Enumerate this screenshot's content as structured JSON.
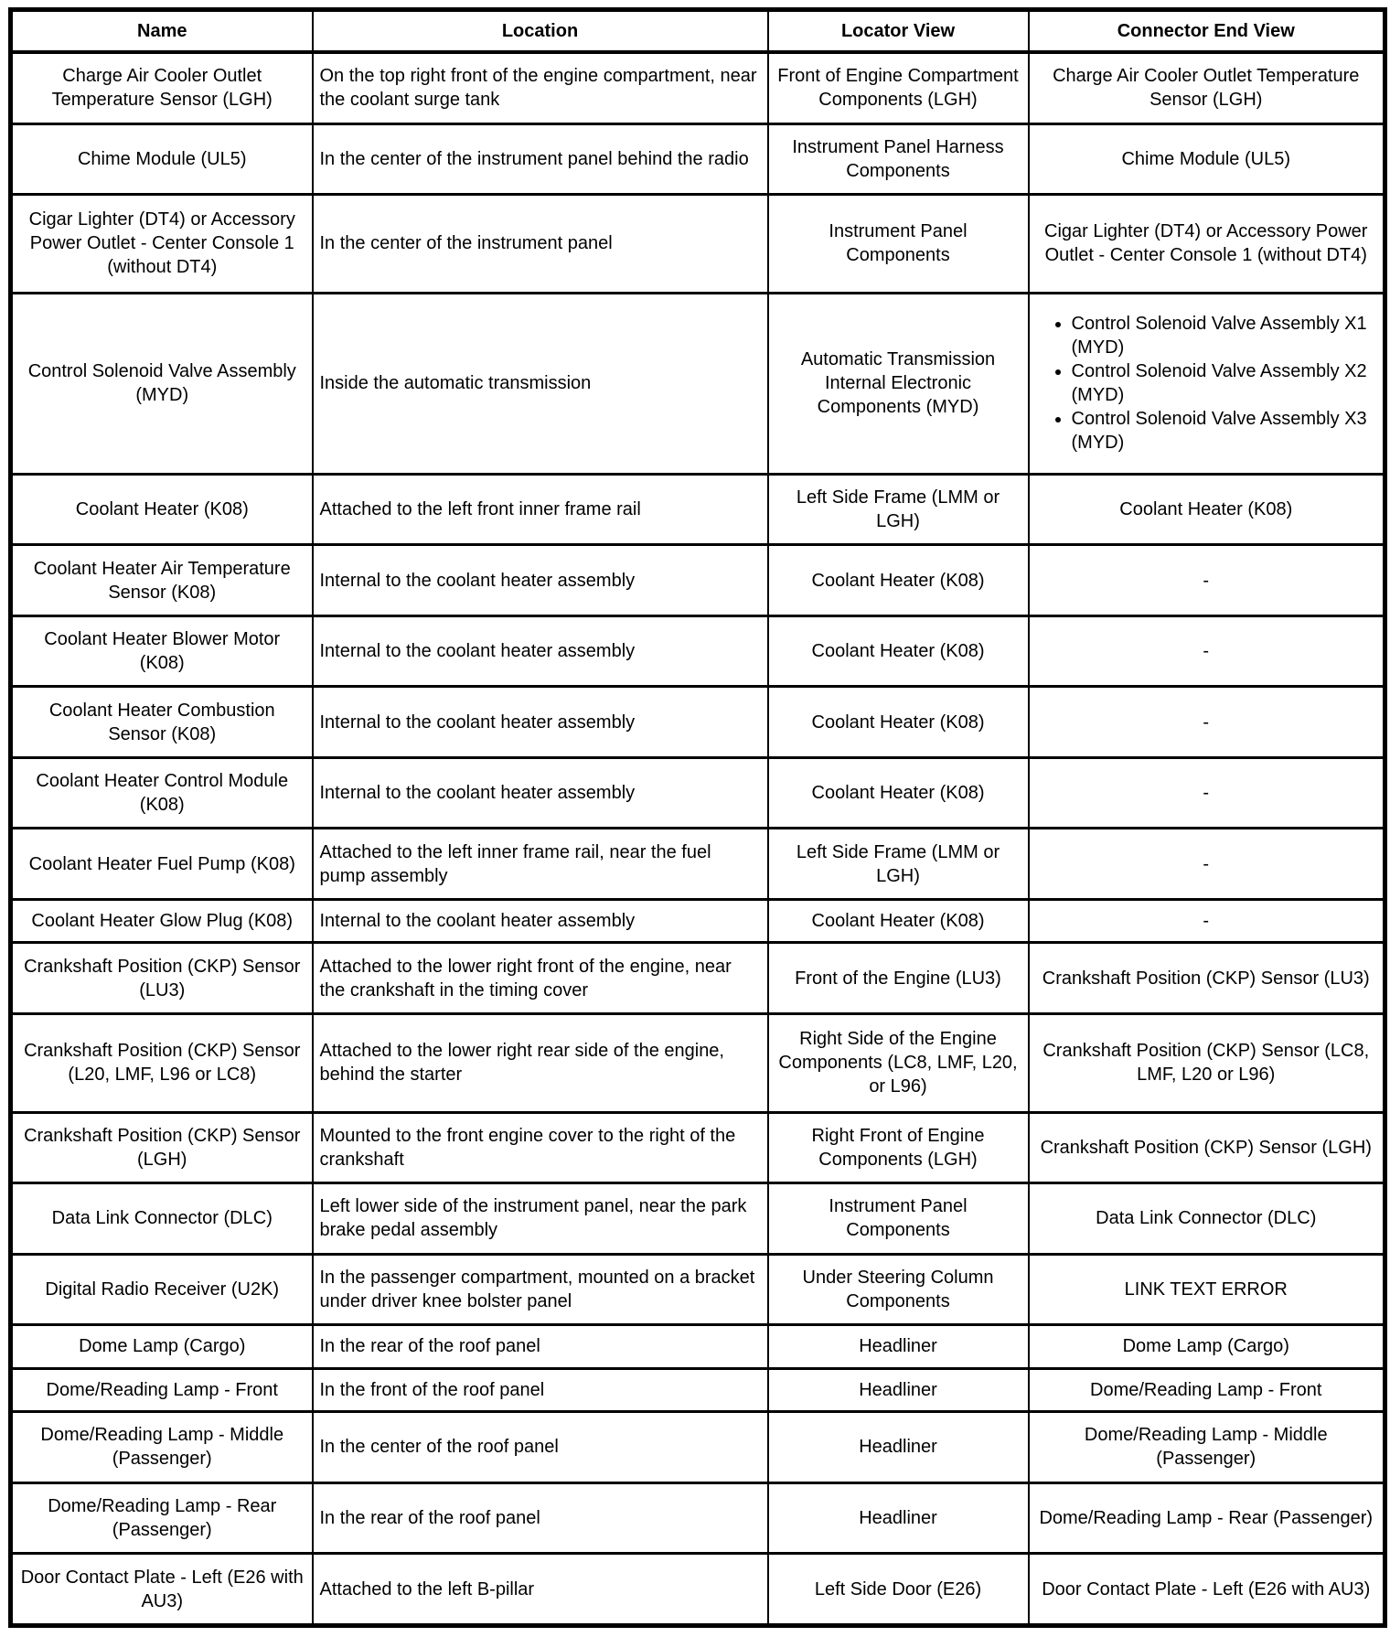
{
  "table": {
    "headers": [
      "Name",
      "Location",
      "Locator View",
      "Connector End View"
    ],
    "rows": [
      {
        "name": "Charge Air Cooler Outlet Temperature Sensor (LGH)",
        "location": "On the top right front of the engine compartment, near the coolant surge tank",
        "locator_view": "Front of Engine Compartment Components (LGH)",
        "connector_end_view": "Charge Air Cooler Outlet Temperature Sensor (LGH)"
      },
      {
        "name": "Chime Module (UL5)",
        "location": "In the center of the instrument panel behind the radio",
        "locator_view": "Instrument Panel Harness Components",
        "connector_end_view": "Chime Module (UL5)"
      },
      {
        "name": "Cigar Lighter (DT4) or Accessory Power Outlet - Center Console 1 (without DT4)",
        "location": "In the center of the instrument panel",
        "locator_view": "Instrument Panel Components",
        "connector_end_view": "Cigar Lighter (DT4) or Accessory Power Outlet - Center Console 1 (without DT4)"
      },
      {
        "name": "Control Solenoid Valve Assembly (MYD)",
        "location": "Inside the automatic transmission",
        "locator_view": "Automatic Transmission Internal Electronic Components (MYD)",
        "connector_end_view": [
          "Control Solenoid Valve Assembly X1 (MYD)",
          "Control Solenoid Valve Assembly X2 (MYD)",
          "Control Solenoid Valve Assembly X3 (MYD)"
        ]
      },
      {
        "name": "Coolant Heater (K08)",
        "location": "Attached to the left front inner frame rail",
        "locator_view": "Left Side Frame (LMM or LGH)",
        "connector_end_view": "Coolant Heater (K08)"
      },
      {
        "name": "Coolant Heater Air Temperature Sensor (K08)",
        "location": "Internal to the coolant heater assembly",
        "locator_view": "Coolant Heater (K08)",
        "connector_end_view": "-"
      },
      {
        "name": "Coolant Heater Blower Motor (K08)",
        "location": "Internal to the coolant heater assembly",
        "locator_view": "Coolant Heater (K08)",
        "connector_end_view": "-"
      },
      {
        "name": "Coolant Heater Combustion Sensor (K08)",
        "location": "Internal to the coolant heater assembly",
        "locator_view": "Coolant Heater (K08)",
        "connector_end_view": "-"
      },
      {
        "name": "Coolant Heater Control Module (K08)",
        "location": "Internal to the coolant heater assembly",
        "locator_view": "Coolant Heater (K08)",
        "connector_end_view": "-"
      },
      {
        "name": "Coolant Heater Fuel Pump (K08)",
        "location": "Attached to the left inner frame rail, near the fuel pump assembly",
        "locator_view": "Left Side Frame (LMM or LGH)",
        "connector_end_view": "-"
      },
      {
        "name": "Coolant Heater Glow Plug (K08)",
        "location": "Internal to the coolant heater assembly",
        "locator_view": "Coolant Heater (K08)",
        "connector_end_view": "-"
      },
      {
        "name": "Crankshaft Position (CKP) Sensor (LU3)",
        "location": "Attached to the lower right front of the engine, near the crankshaft in the timing cover",
        "locator_view": "Front of the Engine (LU3)",
        "connector_end_view": "Crankshaft Position (CKP) Sensor (LU3)"
      },
      {
        "name": "Crankshaft Position (CKP) Sensor (L20, LMF, L96 or LC8)",
        "location": "Attached to the lower right rear side of the engine, behind the starter",
        "locator_view": "Right Side of the Engine Components (LC8, LMF, L20, or L96)",
        "connector_end_view": "Crankshaft Position (CKP) Sensor (LC8, LMF, L20 or L96)"
      },
      {
        "name": "Crankshaft Position (CKP) Sensor (LGH)",
        "location": "Mounted to the front engine cover to the right of the crankshaft",
        "locator_view": "Right Front of Engine Components (LGH)",
        "connector_end_view": "Crankshaft Position (CKP) Sensor (LGH)"
      },
      {
        "name": "Data Link Connector (DLC)",
        "location": "Left lower side of the instrument panel, near the park brake pedal assembly",
        "locator_view": "Instrument Panel Components",
        "connector_end_view": "Data Link Connector (DLC)"
      },
      {
        "name": "Digital Radio Receiver (U2K)",
        "location": "In the passenger compartment, mounted on a bracket under driver knee bolster panel",
        "locator_view": "Under Steering Column Components",
        "connector_end_view": "LINK TEXT ERROR"
      },
      {
        "name": "Dome Lamp (Cargo)",
        "location": "In the rear of the roof panel",
        "locator_view": "Headliner",
        "connector_end_view": "Dome Lamp (Cargo)"
      },
      {
        "name": "Dome/Reading Lamp - Front",
        "location": "In the front of the roof panel",
        "locator_view": "Headliner",
        "connector_end_view": "Dome/Reading Lamp - Front"
      },
      {
        "name": "Dome/Reading Lamp - Middle (Passenger)",
        "location": "In the center of the roof panel",
        "locator_view": "Headliner",
        "connector_end_view": "Dome/Reading Lamp - Middle (Passenger)"
      },
      {
        "name": "Dome/Reading Lamp - Rear (Passenger)",
        "location": "In the rear of the roof panel",
        "locator_view": "Headliner",
        "connector_end_view": "Dome/Reading Lamp - Rear (Passenger)"
      },
      {
        "name": "Door Contact Plate - Left (E26 with AU3)",
        "location": "Attached to the left B-pillar",
        "locator_view": "Left Side Door (E26)",
        "connector_end_view": "Door Contact Plate - Left (E26 with AU3)"
      }
    ]
  }
}
